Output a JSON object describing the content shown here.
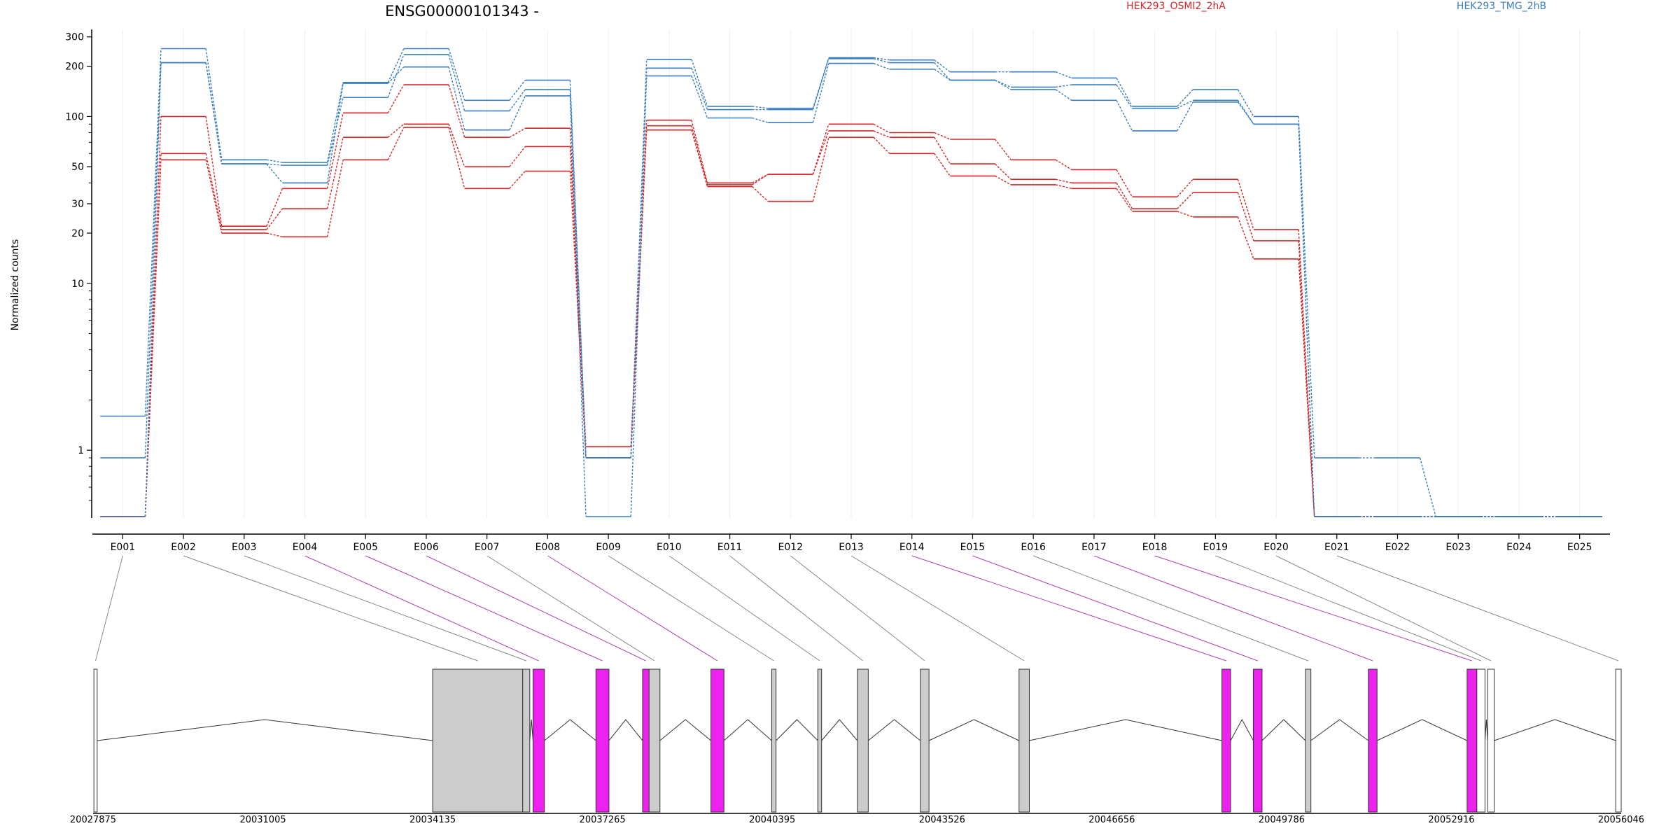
{
  "chart_data": {
    "type": "line",
    "title": "ENSG00000101343 -",
    "ylabel": "Normalized counts",
    "yscale": "log",
    "ylim": [
      0.4,
      320
    ],
    "yticks": [
      "300",
      "200",
      "100",
      "50",
      "30",
      "20",
      "10",
      "1"
    ],
    "ytick_values": [
      300,
      200,
      100,
      50,
      30,
      20,
      10,
      1
    ],
    "legend_position": "top-right",
    "grid": "vertical-light",
    "categories": [
      "E001",
      "E002",
      "E003",
      "E004",
      "E005",
      "E006",
      "E007",
      "E008",
      "E009",
      "E010",
      "E011",
      "E012",
      "E013",
      "E014",
      "E015",
      "E016",
      "E017",
      "E018",
      "E019",
      "E020",
      "E021",
      "E022",
      "E023",
      "E024",
      "E025"
    ],
    "series": [
      {
        "name": "HEK293_OSMI2_2hA",
        "color": "#d62728",
        "lines": [
          [
            0.4,
            100,
            22,
            37,
            105,
            155,
            75,
            85,
            1.05,
            95,
            40,
            45,
            90,
            80,
            73,
            55,
            48,
            33,
            42,
            21,
            0.4,
            0.4,
            0.4,
            0.4,
            0.4
          ],
          [
            0.4,
            60,
            21,
            28,
            75,
            90,
            50,
            66,
            0.9,
            88,
            39,
            45,
            82,
            75,
            52,
            42,
            40,
            28,
            35,
            18,
            0.4,
            0.4,
            0.4,
            0.4,
            0.4
          ],
          [
            0.4,
            55,
            20,
            19,
            55,
            86,
            37,
            47,
            0.9,
            83,
            38,
            31,
            75,
            60,
            44,
            39,
            37,
            27,
            25,
            14,
            0.4,
            0.4,
            0.4,
            0.4,
            0.4
          ]
        ]
      },
      {
        "name": "HEK293_TMG_2hB",
        "color": "#3a7ebf",
        "lines": [
          [
            1.6,
            255,
            55,
            53,
            160,
            255,
            125,
            165,
            0.9,
            220,
            115,
            112,
            225,
            218,
            185,
            185,
            170,
            115,
            145,
            100,
            0.9,
            0.9,
            0.4,
            0.4,
            0.4
          ],
          [
            0.9,
            210,
            52,
            51,
            130,
            235,
            108,
            145,
            0.9,
            195,
            110,
            110,
            222,
            210,
            165,
            150,
            155,
            112,
            125,
            90,
            0.4,
            0.4,
            0.4,
            0.4,
            0.4
          ],
          [
            0.4,
            210,
            52,
            40,
            158,
            198,
            83,
            133,
            0.4,
            175,
            98,
            92,
            208,
            192,
            165,
            145,
            125,
            82,
            122,
            90,
            0.4,
            0.4,
            0.4,
            0.4,
            0.4
          ]
        ]
      }
    ],
    "genomic_axis": {
      "ticks": [
        "20027875",
        "20031005",
        "20034135",
        "20037265",
        "20040395",
        "20043526",
        "20046656",
        "20049786",
        "20052916",
        "20056046"
      ],
      "tick_values": [
        20027875,
        20031005,
        20034135,
        20037265,
        20040395,
        20043526,
        20046656,
        20049786,
        20052916,
        20056046
      ],
      "exon_coords": [
        {
          "start": 20027890,
          "end": 20027950,
          "color": "white"
        },
        {
          "start": 20034135,
          "end": 20035795,
          "color": "grey"
        },
        {
          "start": 20035795,
          "end": 20035925,
          "color": "grey"
        },
        {
          "start": 20035985,
          "end": 20036195,
          "color": "magenta"
        },
        {
          "start": 20037145,
          "end": 20037385,
          "color": "magenta"
        },
        {
          "start": 20038005,
          "end": 20038125,
          "color": "magenta"
        },
        {
          "start": 20038125,
          "end": 20038325,
          "color": "grey"
        },
        {
          "start": 20039265,
          "end": 20039505,
          "color": "magenta"
        },
        {
          "start": 20040385,
          "end": 20040465,
          "color": "grey"
        },
        {
          "start": 20041235,
          "end": 20041305,
          "color": "grey"
        },
        {
          "start": 20041965,
          "end": 20042165,
          "color": "grey"
        },
        {
          "start": 20043125,
          "end": 20043285,
          "color": "grey"
        },
        {
          "start": 20044945,
          "end": 20045135,
          "color": "grey"
        },
        {
          "start": 20048685,
          "end": 20048845,
          "color": "magenta"
        },
        {
          "start": 20049265,
          "end": 20049425,
          "color": "magenta"
        },
        {
          "start": 20050225,
          "end": 20050325,
          "color": "grey"
        },
        {
          "start": 20051385,
          "end": 20051545,
          "color": "magenta"
        },
        {
          "start": 20053205,
          "end": 20053385,
          "color": "magenta"
        },
        {
          "start": 20053385,
          "end": 20053535,
          "color": "white"
        },
        {
          "start": 20053585,
          "end": 20053705,
          "color": "white"
        },
        {
          "start": 20055945,
          "end": 20056046,
          "color": "white"
        }
      ]
    }
  },
  "colors": {
    "magenta": "#ee22ee",
    "grey": "#cccccc",
    "white": "#ffffff",
    "link_grey": "#888888",
    "link_magenta": "#b040b0"
  }
}
